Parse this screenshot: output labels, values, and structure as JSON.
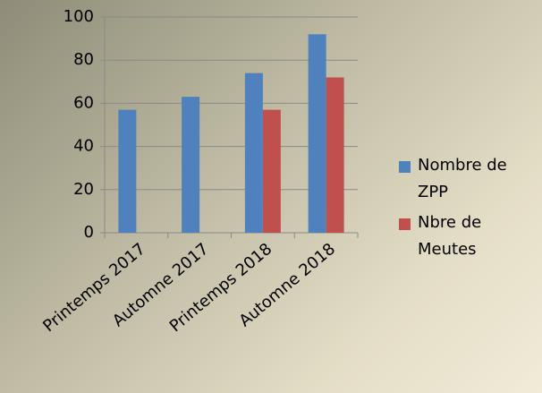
{
  "chart_data": {
    "type": "bar",
    "categories": [
      "Printemps 2017",
      "Automne 2017",
      "Printemps 2018",
      "Automne 2018"
    ],
    "series": [
      {
        "name": "Nombre de ZPP",
        "color": "#4f81bd",
        "values": [
          57,
          63,
          74,
          92
        ]
      },
      {
        "name": "Nbre de Meutes",
        "color": "#c0504d",
        "values": [
          null,
          null,
          57,
          72
        ]
      }
    ],
    "ylim": [
      0,
      100
    ],
    "yticks": [
      0,
      20,
      40,
      60,
      80,
      100
    ],
    "grid": true,
    "legend": "right"
  }
}
